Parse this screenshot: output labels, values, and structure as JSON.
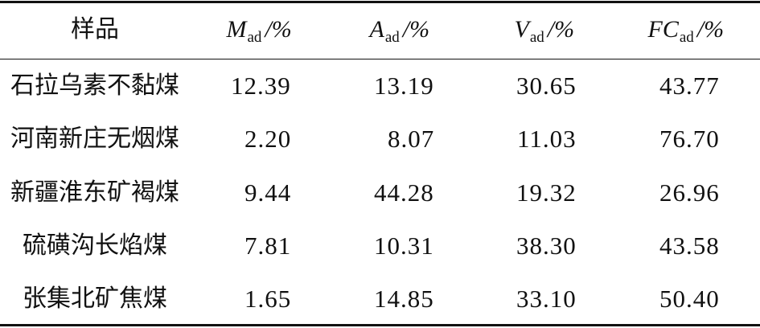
{
  "table": {
    "header": [
      "样品",
      {
        "main": "M",
        "sub": "ad",
        "unit": "/%"
      },
      {
        "main": "A",
        "sub": "ad",
        "unit": "/%"
      },
      {
        "main": "V",
        "sub": "ad",
        "unit": "/%"
      },
      {
        "main": "FC",
        "sub": "ad",
        "unit": "/%"
      }
    ],
    "rows": [
      [
        "石拉乌素不黏煤",
        "12.39",
        "13.19",
        "30.65",
        "43.77"
      ],
      [
        "河南新庄无烟煤",
        "2.20",
        "8.07",
        "11.03",
        "76.70"
      ],
      [
        "新疆淮东矿褐煤",
        "9.44",
        "44.28",
        "19.32",
        "26.96"
      ],
      [
        "硫磺沟长焰煤",
        "7.81",
        "10.31",
        "38.30",
        "43.58"
      ],
      [
        "张集北矿焦煤",
        "1.65",
        "14.85",
        "33.10",
        "50.40"
      ]
    ]
  }
}
